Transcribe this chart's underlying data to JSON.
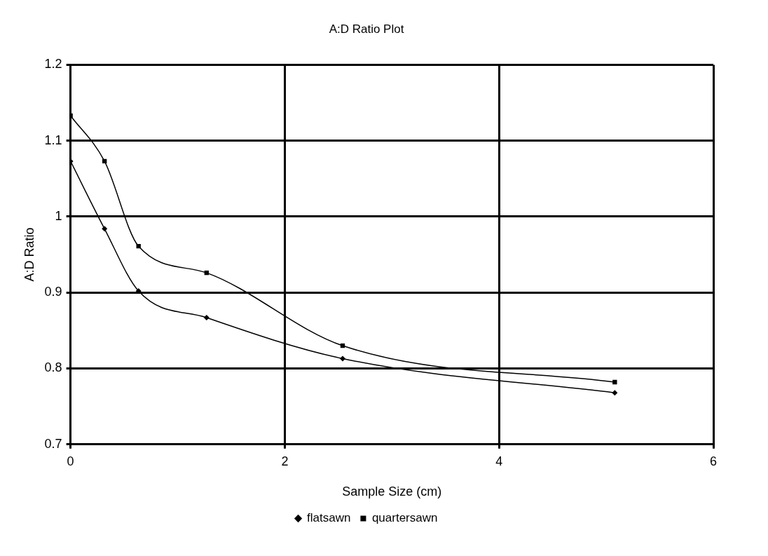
{
  "chart_data": {
    "type": "line",
    "title": "A:D Ratio Plot",
    "xlabel": "Sample Size (cm)",
    "ylabel": "A:D Ratio",
    "x": [
      0,
      0.3175,
      0.635,
      1.27,
      2.54,
      5.08
    ],
    "series": [
      {
        "name": "flatsawn",
        "color": "#000000",
        "marker": "diamond",
        "values": [
          1.073,
          0.984,
          0.902,
          0.867,
          0.813,
          0.768
        ]
      },
      {
        "name": "quartersawn",
        "color": "#000000",
        "marker": "square",
        "values": [
          1.133,
          1.073,
          0.961,
          0.926,
          0.83,
          0.782
        ]
      }
    ],
    "xlim": [
      0,
      6
    ],
    "xticks": [
      0,
      2,
      4,
      6
    ],
    "ylim": [
      0.7,
      1.2
    ],
    "yticks": [
      0.7,
      0.8,
      0.9,
      1,
      1.1,
      1.2
    ],
    "grid": true,
    "legend": "bottom",
    "line_style": "solid"
  }
}
